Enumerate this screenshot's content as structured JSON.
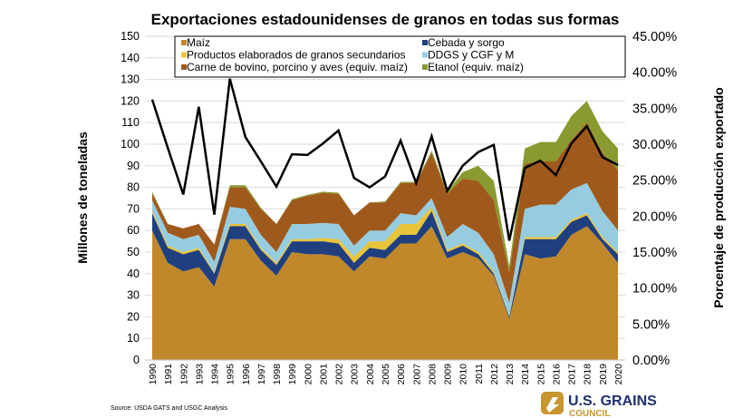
{
  "chart_data": {
    "type": "area",
    "title": "Exportaciones estadounidenses de granos en todas sus formas",
    "ylabel": "Millones de toneladas",
    "y2label": "Porcentaje de producción exportado",
    "ylim": [
      0,
      150
    ],
    "y2lim": [
      0,
      45
    ],
    "yticks": [
      "0",
      "10",
      "20",
      "30",
      "40",
      "50",
      "60",
      "70",
      "80",
      "90",
      "100",
      "110",
      "120",
      "130",
      "140",
      "150"
    ],
    "y2ticks": [
      "0.00%",
      "5.00%",
      "10.00%",
      "15.00%",
      "20.00%",
      "25.00%",
      "30.00%",
      "35.00%",
      "40.00%",
      "45.00%"
    ],
    "grid": true,
    "legend_position": "top",
    "categories": [
      "1990",
      "1991",
      "1992",
      "1993",
      "1994",
      "1995",
      "1996",
      "1997",
      "1998",
      "1999",
      "2000",
      "2001",
      "2002",
      "2003",
      "2004",
      "2005",
      "2006",
      "2007",
      "2008",
      "2009",
      "2010",
      "2011",
      "2012",
      "2013",
      "2014",
      "2015",
      "2016",
      "2017",
      "2018",
      "2019",
      "2020"
    ],
    "series": [
      {
        "name": "Maíz",
        "color": "#C0882A",
        "stacked": true,
        "values": [
          60,
          45,
          41,
          43,
          34,
          56,
          56,
          46,
          39,
          50,
          49,
          49,
          48,
          41,
          48,
          47,
          54,
          54,
          62,
          47,
          50,
          47,
          39,
          19,
          49,
          47,
          48,
          58,
          62,
          54,
          45
        ]
      },
      {
        "name": "Cebada y sorgo",
        "color": "#1F3F7F",
        "stacked": true,
        "values": [
          8,
          7,
          8,
          8,
          6,
          6,
          6,
          5,
          5,
          5,
          6,
          6,
          6,
          4,
          4,
          4,
          4,
          4,
          7,
          3,
          3,
          2,
          1,
          1,
          7,
          9,
          8,
          6,
          5,
          2,
          4
        ]
      },
      {
        "name": "Productos elaborados de granos secundarios",
        "color": "#E8C43A",
        "stacked": true,
        "values": [
          1,
          1,
          1,
          1,
          0.5,
          1,
          1,
          1,
          1,
          1,
          1,
          1.5,
          2,
          3,
          3,
          4,
          5,
          5,
          2,
          1,
          1,
          1,
          1,
          0.5,
          1,
          1,
          1,
          1,
          1,
          1,
          1
        ]
      },
      {
        "name": "DDGS y CGF y M",
        "color": "#96CCE0",
        "stacked": true,
        "values": [
          5,
          6,
          6,
          6,
          5,
          8,
          7,
          6,
          5,
          7,
          7,
          7,
          7,
          5,
          5,
          5,
          5,
          4,
          4,
          6,
          9,
          9,
          8,
          6,
          13,
          15,
          15,
          14,
          14,
          12,
          10
        ]
      },
      {
        "name": "Carne de bovino, porcino y aves (equiv. maíz)",
        "color": "#A0591C",
        "stacked": true,
        "values": [
          3,
          4,
          5,
          5,
          8,
          9,
          10,
          12,
          13,
          11,
          13,
          14,
          14,
          14,
          13,
          13,
          14,
          15,
          21,
          20,
          21,
          24,
          25,
          14,
          21,
          20,
          20,
          23,
          28,
          27,
          28
        ]
      },
      {
        "name": "Etanol (equiv. maíz)",
        "color": "#8A9A30",
        "stacked": true,
        "values": [
          1,
          0,
          0,
          0,
          0,
          1,
          1,
          0.5,
          0,
          0.5,
          0.5,
          0.5,
          0.5,
          0,
          0,
          0.5,
          0.5,
          0.5,
          1,
          1,
          3,
          7,
          9,
          3,
          7,
          9,
          9,
          11,
          10,
          10,
          10
        ]
      },
      {
        "name": "",
        "color": "#000000",
        "axis": "right",
        "type": "line",
        "values": [
          36.2,
          29.5,
          23,
          35.2,
          20.2,
          39.1,
          31,
          27.6,
          24.1,
          28.6,
          28.5,
          30.1,
          31.9,
          25.3,
          24,
          25.5,
          30.5,
          24.6,
          31.1,
          23.5,
          27,
          28.9,
          29.9,
          16.6,
          26.7,
          27.7,
          25.7,
          30.1,
          32.5,
          28.2,
          27.1
        ]
      }
    ]
  },
  "source": "Source: USDA GATS and USGC Analysis",
  "logo": {
    "line1": "U.S. GRAINS",
    "line2": "COUNCIL",
    "colors": {
      "gold": "#C8962E",
      "navy": "#1F2F6F"
    }
  }
}
